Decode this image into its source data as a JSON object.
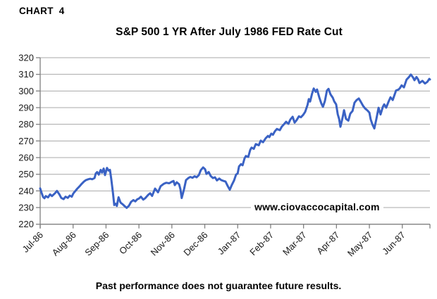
{
  "page": {
    "chart_label": "CHART 4",
    "footer": "Past performance does not guarantee future results."
  },
  "colors": {
    "line": "#3A62C4",
    "grid": "#A8A8A8",
    "axis": "#808080",
    "tick_text": "#1A1A1A",
    "background": "#FFFFFF"
  },
  "chart_data": {
    "type": "line",
    "title": "S&P 500 1 YR After July 1986 FED Rate Cut",
    "watermark": "www.ciovaccocapital.com",
    "xlabel": "",
    "ylabel": "",
    "legend": "none",
    "grid": "horizontal",
    "ylim": [
      220,
      320
    ],
    "y_tick_step": 10,
    "y_tick_labels": [
      "320",
      "310",
      "300",
      "290",
      "280",
      "270",
      "260",
      "250",
      "240",
      "230",
      "220"
    ],
    "x_tick_labels": [
      "Jul-86",
      "Aug-86",
      "Sep-86",
      "Oct-86",
      "Nov-86",
      "Dec-86",
      "Jan-87",
      "Feb-87",
      "Mar-87",
      "Apr-87",
      "May-87",
      "Jun-87"
    ],
    "x_axis_end_months": 11.84,
    "series": [
      {
        "name": "S&P 500",
        "points": [
          [
            0.0,
            241.5
          ],
          [
            0.04,
            239.0
          ],
          [
            0.09,
            236.3
          ],
          [
            0.13,
            235.6
          ],
          [
            0.17,
            236.9
          ],
          [
            0.24,
            236.1
          ],
          [
            0.3,
            237.9
          ],
          [
            0.36,
            236.9
          ],
          [
            0.45,
            238.6
          ],
          [
            0.51,
            240.0
          ],
          [
            0.58,
            238.0
          ],
          [
            0.64,
            235.8
          ],
          [
            0.71,
            235.1
          ],
          [
            0.77,
            236.5
          ],
          [
            0.84,
            235.8
          ],
          [
            0.9,
            237.2
          ],
          [
            0.96,
            236.5
          ],
          [
            1.01,
            238.6
          ],
          [
            1.07,
            240.0
          ],
          [
            1.13,
            241.4
          ],
          [
            1.2,
            242.8
          ],
          [
            1.26,
            244.2
          ],
          [
            1.33,
            245.6
          ],
          [
            1.39,
            246.5
          ],
          [
            1.46,
            247.0
          ],
          [
            1.52,
            247.3
          ],
          [
            1.58,
            247.0
          ],
          [
            1.65,
            247.7
          ],
          [
            1.69,
            250.5
          ],
          [
            1.73,
            251.3
          ],
          [
            1.78,
            249.8
          ],
          [
            1.84,
            252.6
          ],
          [
            1.88,
            251.0
          ],
          [
            1.93,
            253.4
          ],
          [
            1.97,
            249.5
          ],
          [
            2.03,
            253.8
          ],
          [
            2.08,
            252.2
          ],
          [
            2.12,
            252.6
          ],
          [
            2.16,
            247.0
          ],
          [
            2.21,
            239.0
          ],
          [
            2.25,
            231.5
          ],
          [
            2.29,
            232.3
          ],
          [
            2.33,
            231.0
          ],
          [
            2.38,
            236.2
          ],
          [
            2.44,
            233.0
          ],
          [
            2.51,
            231.9
          ],
          [
            2.57,
            230.8
          ],
          [
            2.63,
            229.8
          ],
          [
            2.7,
            231.2
          ],
          [
            2.76,
            233.4
          ],
          [
            2.83,
            234.5
          ],
          [
            2.89,
            233.7
          ],
          [
            2.95,
            235.0
          ],
          [
            3.0,
            235.4
          ],
          [
            3.06,
            236.5
          ],
          [
            3.13,
            234.8
          ],
          [
            3.19,
            235.6
          ],
          [
            3.28,
            237.6
          ],
          [
            3.34,
            238.6
          ],
          [
            3.4,
            237.0
          ],
          [
            3.49,
            241.4
          ],
          [
            3.58,
            239.2
          ],
          [
            3.66,
            242.8
          ],
          [
            3.75,
            244.2
          ],
          [
            3.83,
            244.9
          ],
          [
            3.92,
            244.6
          ],
          [
            4.0,
            245.5
          ],
          [
            4.05,
            246.0
          ],
          [
            4.09,
            243.5
          ],
          [
            4.15,
            245.2
          ],
          [
            4.22,
            244.0
          ],
          [
            4.26,
            241.0
          ],
          [
            4.3,
            235.7
          ],
          [
            4.37,
            241.0
          ],
          [
            4.43,
            246.5
          ],
          [
            4.5,
            247.7
          ],
          [
            4.56,
            248.4
          ],
          [
            4.63,
            247.9
          ],
          [
            4.69,
            248.8
          ],
          [
            4.75,
            248.2
          ],
          [
            4.82,
            249.5
          ],
          [
            4.88,
            252.5
          ],
          [
            4.95,
            254.1
          ],
          [
            5.01,
            253.0
          ],
          [
            5.05,
            250.2
          ],
          [
            5.12,
            251.3
          ],
          [
            5.18,
            249.0
          ],
          [
            5.25,
            247.7
          ],
          [
            5.31,
            248.2
          ],
          [
            5.37,
            246.3
          ],
          [
            5.44,
            247.4
          ],
          [
            5.5,
            246.5
          ],
          [
            5.57,
            246.0
          ],
          [
            5.63,
            245.6
          ],
          [
            5.7,
            242.8
          ],
          [
            5.76,
            240.7
          ],
          [
            5.82,
            243.5
          ],
          [
            5.89,
            246.3
          ],
          [
            5.95,
            249.8
          ],
          [
            6.0,
            250.5
          ],
          [
            6.04,
            254.7
          ],
          [
            6.1,
            256.1
          ],
          [
            6.15,
            255.4
          ],
          [
            6.21,
            259.6
          ],
          [
            6.25,
            261.0
          ],
          [
            6.32,
            260.4
          ],
          [
            6.38,
            264.6
          ],
          [
            6.42,
            266.0
          ],
          [
            6.49,
            265.3
          ],
          [
            6.55,
            268.1
          ],
          [
            6.64,
            267.4
          ],
          [
            6.7,
            270.2
          ],
          [
            6.77,
            269.2
          ],
          [
            6.85,
            271.6
          ],
          [
            6.92,
            273.0
          ],
          [
            6.96,
            272.3
          ],
          [
            7.02,
            274.4
          ],
          [
            7.07,
            273.7
          ],
          [
            7.13,
            275.8
          ],
          [
            7.19,
            277.2
          ],
          [
            7.28,
            276.5
          ],
          [
            7.34,
            278.6
          ],
          [
            7.41,
            280.1
          ],
          [
            7.47,
            281.5
          ],
          [
            7.54,
            280.3
          ],
          [
            7.6,
            282.9
          ],
          [
            7.67,
            284.5
          ],
          [
            7.73,
            281.0
          ],
          [
            7.79,
            282.5
          ],
          [
            7.86,
            284.8
          ],
          [
            7.92,
            284.2
          ],
          [
            7.99,
            285.7
          ],
          [
            8.05,
            287.5
          ],
          [
            8.12,
            291.6
          ],
          [
            8.16,
            295.1
          ],
          [
            8.2,
            293.7
          ],
          [
            8.26,
            298.5
          ],
          [
            8.31,
            301.5
          ],
          [
            8.37,
            299.5
          ],
          [
            8.41,
            300.9
          ],
          [
            8.48,
            296.0
          ],
          [
            8.54,
            292.5
          ],
          [
            8.59,
            290.5
          ],
          [
            8.65,
            294.0
          ],
          [
            8.71,
            300.2
          ],
          [
            8.76,
            301.3
          ],
          [
            8.82,
            298.0
          ],
          [
            8.89,
            295.9
          ],
          [
            8.93,
            293.8
          ],
          [
            8.99,
            292.0
          ],
          [
            9.04,
            286.0
          ],
          [
            9.08,
            283.3
          ],
          [
            9.12,
            278.5
          ],
          [
            9.19,
            284.3
          ],
          [
            9.23,
            288.5
          ],
          [
            9.29,
            283.3
          ],
          [
            9.36,
            282.2
          ],
          [
            9.42,
            286.4
          ],
          [
            9.49,
            288.0
          ],
          [
            9.55,
            293.0
          ],
          [
            9.61,
            294.5
          ],
          [
            9.68,
            295.5
          ],
          [
            9.74,
            293.5
          ],
          [
            9.81,
            291.0
          ],
          [
            9.87,
            289.5
          ],
          [
            9.94,
            288.3
          ],
          [
            10.0,
            287.0
          ],
          [
            10.04,
            283.0
          ],
          [
            10.09,
            280.0
          ],
          [
            10.15,
            277.5
          ],
          [
            10.21,
            283.0
          ],
          [
            10.28,
            289.9
          ],
          [
            10.34,
            285.9
          ],
          [
            10.41,
            290.5
          ],
          [
            10.45,
            292.0
          ],
          [
            10.51,
            290.0
          ],
          [
            10.58,
            293.5
          ],
          [
            10.64,
            296.2
          ],
          [
            10.71,
            294.6
          ],
          [
            10.77,
            298.0
          ],
          [
            10.81,
            300.3
          ],
          [
            10.88,
            300.8
          ],
          [
            10.92,
            301.5
          ],
          [
            10.98,
            303.4
          ],
          [
            11.05,
            302.2
          ],
          [
            11.13,
            306.8
          ],
          [
            11.2,
            308.3
          ],
          [
            11.26,
            309.9
          ],
          [
            11.33,
            308.0
          ],
          [
            11.37,
            306.5
          ],
          [
            11.43,
            308.4
          ],
          [
            11.48,
            307.0
          ],
          [
            11.52,
            304.8
          ],
          [
            11.61,
            306.1
          ],
          [
            11.69,
            304.5
          ],
          [
            11.76,
            305.5
          ],
          [
            11.82,
            307.3
          ],
          [
            11.84,
            306.9
          ]
        ]
      }
    ]
  }
}
